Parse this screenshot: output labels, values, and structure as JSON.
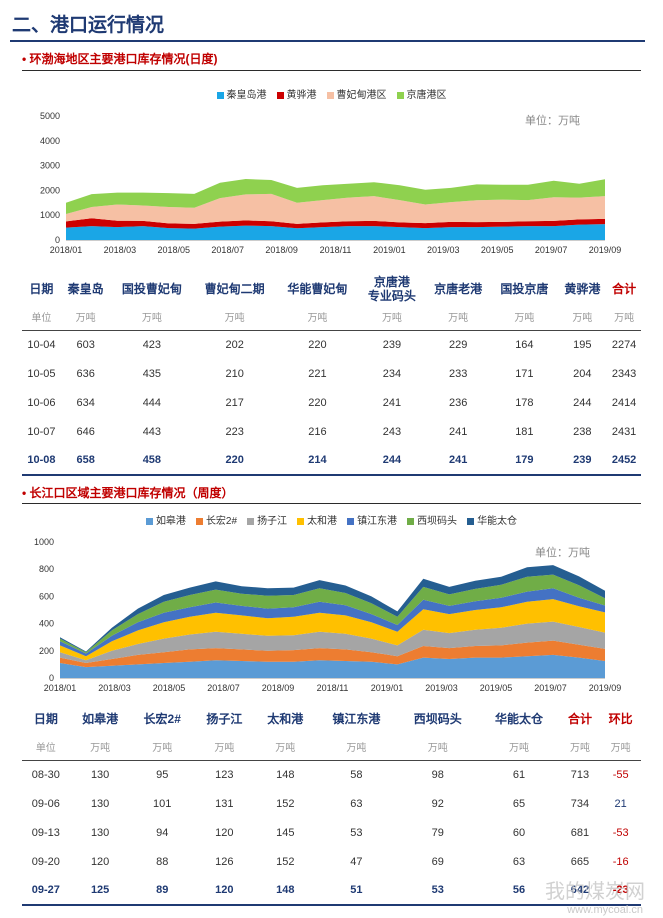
{
  "title": "二、港口运行情况",
  "section1": {
    "heading": "• 环渤海地区主要港口库存情况(日度)",
    "unit": "单位：万吨",
    "legend": [
      {
        "name": "秦皇岛港",
        "color": "#1aa6e6"
      },
      {
        "name": "黄骅港",
        "color": "#cc0000"
      },
      {
        "name": "曹妃甸港区",
        "color": "#f6c0a4"
      },
      {
        "name": "京唐港区",
        "color": "#8fd14f"
      }
    ],
    "table": {
      "headers": [
        "日期",
        "秦皇岛",
        "国投曹妃甸",
        "曹妃甸二期",
        "华能曹妃甸",
        "京唐港\n专业码头",
        "京唐老港",
        "国投京唐",
        "黄骅港",
        "合计"
      ],
      "units": [
        "单位",
        "万吨",
        "万吨",
        "万吨",
        "万吨",
        "万吨",
        "万吨",
        "万吨",
        "万吨",
        "万吨"
      ],
      "rows": [
        [
          "10-04",
          "603",
          "423",
          "202",
          "220",
          "239",
          "229",
          "164",
          "195",
          "2274"
        ],
        [
          "10-05",
          "636",
          "435",
          "210",
          "221",
          "234",
          "233",
          "171",
          "204",
          "2343"
        ],
        [
          "10-06",
          "634",
          "444",
          "217",
          "220",
          "241",
          "236",
          "178",
          "244",
          "2414"
        ],
        [
          "10-07",
          "646",
          "443",
          "223",
          "216",
          "243",
          "241",
          "181",
          "238",
          "2431"
        ],
        [
          "10-08",
          "658",
          "458",
          "220",
          "214",
          "244",
          "241",
          "179",
          "239",
          "2452"
        ]
      ]
    }
  },
  "section2": {
    "heading": "• 长江口区域主要港口库存情况（周度）",
    "unit": "单位：万吨",
    "legend": [
      {
        "name": "如皋港",
        "color": "#5b9bd5"
      },
      {
        "name": "长宏2#",
        "color": "#ed7d31"
      },
      {
        "name": "扬子江",
        "color": "#a5a5a5"
      },
      {
        "name": "太和港",
        "color": "#ffc000"
      },
      {
        "name": "镇江东港",
        "color": "#4472c4"
      },
      {
        "name": "西坝码头",
        "color": "#70ad47"
      },
      {
        "name": "华能太仓",
        "color": "#255e91"
      }
    ],
    "table": {
      "headers": [
        "日期",
        "如皋港",
        "长宏2#",
        "扬子江",
        "太和港",
        "镇江东港",
        "西坝码头",
        "华能太仓",
        "合计",
        "环比"
      ],
      "units": [
        "单位",
        "万吨",
        "万吨",
        "万吨",
        "万吨",
        "万吨",
        "万吨",
        "万吨",
        "万吨",
        "万吨"
      ],
      "rows": [
        [
          "08-30",
          "130",
          "95",
          "123",
          "148",
          "58",
          "98",
          "61",
          "713",
          "-55"
        ],
        [
          "09-06",
          "130",
          "101",
          "131",
          "152",
          "63",
          "92",
          "65",
          "734",
          "21"
        ],
        [
          "09-13",
          "130",
          "94",
          "120",
          "145",
          "53",
          "79",
          "60",
          "681",
          "-53"
        ],
        [
          "09-20",
          "120",
          "88",
          "126",
          "152",
          "47",
          "69",
          "63",
          "665",
          "-16"
        ],
        [
          "09-27",
          "125",
          "89",
          "120",
          "148",
          "51",
          "53",
          "56",
          "642",
          "-23"
        ]
      ]
    }
  },
  "chart_data": [
    {
      "type": "area",
      "stacked": true,
      "x_ticks": [
        "2018/01",
        "2018/03",
        "2018/05",
        "2018/07",
        "2018/09",
        "2018/11",
        "2019/01",
        "2019/03",
        "2019/05",
        "2019/07",
        "2019/09"
      ],
      "ylim": [
        0,
        5000
      ],
      "y_ticks": [
        0,
        1000,
        2000,
        3000,
        4000,
        5000
      ],
      "x": [
        "2018-01",
        "2018-02",
        "2018-03",
        "2018-04",
        "2018-05",
        "2018-06",
        "2018-07",
        "2018-08",
        "2018-09",
        "2018-10",
        "2018-11",
        "2018-12",
        "2019-01",
        "2019-02",
        "2019-03",
        "2019-04",
        "2019-05",
        "2019-06",
        "2019-07",
        "2019-08",
        "2019-09",
        "2019-10"
      ],
      "series": [
        {
          "name": "秦皇岛港",
          "values": [
            500,
            560,
            520,
            560,
            480,
            460,
            540,
            580,
            560,
            470,
            520,
            560,
            560,
            520,
            480,
            520,
            520,
            540,
            560,
            560,
            620,
            640
          ]
        },
        {
          "name": "黄骅港",
          "values": [
            250,
            320,
            260,
            210,
            190,
            190,
            200,
            210,
            200,
            180,
            190,
            200,
            210,
            190,
            200,
            210,
            200,
            190,
            200,
            210,
            210,
            210
          ]
        },
        {
          "name": "曹妃甸港区",
          "values": [
            300,
            450,
            650,
            620,
            660,
            650,
            950,
            1050,
            1100,
            850,
            900,
            950,
            1000,
            900,
            750,
            800,
            880,
            900,
            850,
            950,
            880,
            920
          ]
        },
        {
          "name": "京唐港区",
          "values": [
            450,
            520,
            480,
            520,
            560,
            560,
            620,
            620,
            560,
            600,
            600,
            560,
            560,
            600,
            600,
            570,
            640,
            600,
            620,
            670,
            560,
            680
          ]
        }
      ]
    },
    {
      "type": "area",
      "stacked": true,
      "x_ticks": [
        "2018/01",
        "2018/03",
        "2018/05",
        "2018/07",
        "2018/09",
        "2018/11",
        "2019/01",
        "2019/03",
        "2019/05",
        "2019/07",
        "2019/09"
      ],
      "ylim": [
        0,
        1000
      ],
      "y_ticks": [
        0,
        200,
        400,
        600,
        800,
        1000
      ],
      "x": [
        "2018-01",
        "2018-02",
        "2018-03",
        "2018-04",
        "2018-05",
        "2018-06",
        "2018-07",
        "2018-08",
        "2018-09",
        "2018-10",
        "2018-11",
        "2018-12",
        "2019-01",
        "2019-02",
        "2019-03",
        "2019-04",
        "2019-05",
        "2019-06",
        "2019-07",
        "2019-08",
        "2019-09",
        "2019-10"
      ],
      "series": [
        {
          "name": "如皋港",
          "values": [
            110,
            80,
            90,
            100,
            110,
            120,
            130,
            125,
            120,
            120,
            130,
            125,
            120,
            100,
            150,
            140,
            150,
            150,
            160,
            170,
            150,
            125
          ]
        },
        {
          "name": "长宏2#",
          "values": [
            40,
            30,
            50,
            70,
            80,
            90,
            90,
            85,
            80,
            85,
            90,
            85,
            70,
            60,
            85,
            80,
            85,
            90,
            100,
            105,
            95,
            89
          ]
        },
        {
          "name": "扬子江",
          "values": [
            40,
            20,
            60,
            80,
            100,
            110,
            120,
            115,
            110,
            110,
            120,
            115,
            100,
            80,
            120,
            110,
            120,
            130,
            140,
            140,
            130,
            120
          ]
        },
        {
          "name": "太和港",
          "values": [
            50,
            30,
            70,
            100,
            120,
            130,
            140,
            135,
            130,
            135,
            140,
            135,
            120,
            100,
            150,
            140,
            145,
            150,
            160,
            165,
            152,
            148
          ]
        },
        {
          "name": "镇江东港",
          "values": [
            30,
            20,
            40,
            60,
            70,
            70,
            75,
            70,
            70,
            70,
            80,
            75,
            60,
            50,
            70,
            60,
            65,
            70,
            75,
            80,
            63,
            51
          ]
        },
        {
          "name": "西坝码头",
          "values": [
            20,
            10,
            40,
            60,
            80,
            90,
            95,
            90,
            95,
            90,
            100,
            90,
            80,
            60,
            95,
            85,
            90,
            95,
            110,
            100,
            92,
            53
          ]
        },
        {
          "name": "华能太仓",
          "values": [
            10,
            5,
            20,
            40,
            50,
            55,
            60,
            55,
            55,
            55,
            60,
            55,
            50,
            40,
            60,
            55,
            60,
            60,
            70,
            70,
            65,
            56
          ]
        }
      ]
    }
  ],
  "watermark": {
    "text": "我的煤炭网",
    "url_text": "www.mycoal.cn"
  }
}
